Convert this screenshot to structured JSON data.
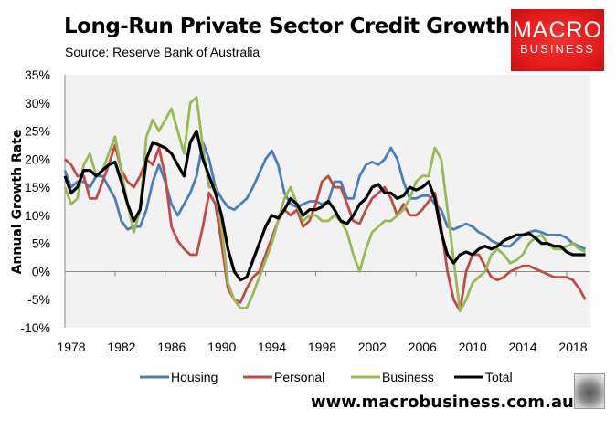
{
  "header": {
    "title": "Long-Run Private Sector Credit Growth",
    "subtitle": "Source: Reserve Bank of Australia"
  },
  "logo": {
    "line1": "MACRO",
    "line2": "BUSINESS",
    "color": "#e81c1c"
  },
  "footer": {
    "website": "www.macrobusiness.com.au"
  },
  "chart_data": {
    "type": "line",
    "title": "Long-Run Private Sector Credit Growth",
    "ylabel": "Annual Growth Rate",
    "xlabel": "",
    "xlim": [
      1978,
      2019.9
    ],
    "ylim": [
      -10,
      35
    ],
    "xticks": [
      1978,
      1982,
      1986,
      1990,
      1994,
      1998,
      2002,
      2006,
      2010,
      2014,
      2018
    ],
    "yticks": [
      "-10%",
      "-5%",
      "0%",
      "5%",
      "10%",
      "15%",
      "20%",
      "25%",
      "30%",
      "35%"
    ],
    "ytick_values": [
      -10,
      -5,
      0,
      5,
      10,
      15,
      20,
      25,
      30,
      35
    ],
    "grid": false,
    "legend": "bottom",
    "x": [
      1978,
      1978.5,
      1979,
      1979.5,
      1980,
      1980.5,
      1981,
      1981.5,
      1982,
      1982.5,
      1983,
      1983.5,
      1984,
      1984.5,
      1985,
      1985.5,
      1986,
      1986.5,
      1987,
      1987.5,
      1988,
      1988.5,
      1989,
      1989.5,
      1990,
      1990.5,
      1991,
      1991.5,
      1992,
      1992.5,
      1993,
      1993.5,
      1994,
      1994.5,
      1995,
      1995.5,
      1996,
      1996.5,
      1997,
      1997.5,
      1998,
      1998.5,
      1999,
      1999.5,
      2000,
      2000.5,
      2001,
      2001.5,
      2002,
      2002.5,
      2003,
      2003.5,
      2004,
      2004.5,
      2005,
      2005.5,
      2006,
      2006.5,
      2007,
      2007.5,
      2008,
      2008.5,
      2009,
      2009.5,
      2010,
      2010.5,
      2011,
      2011.5,
      2012,
      2012.5,
      2013,
      2013.5,
      2014,
      2014.5,
      2015,
      2015.5,
      2016,
      2016.5,
      2017,
      2017.5,
      2018,
      2018.5,
      2019,
      2019.5
    ],
    "series": [
      {
        "name": "Housing",
        "color": "#4a7ebb",
        "values": [
          18,
          15,
          16,
          16,
          15,
          17,
          17,
          15,
          13,
          9,
          7.5,
          8,
          8,
          11,
          16,
          19,
          16,
          12,
          10,
          12,
          14,
          17,
          23,
          20,
          15,
          13,
          11.5,
          11,
          12,
          13,
          15,
          17.5,
          20,
          21.5,
          19,
          14,
          12,
          11.5,
          12,
          12.5,
          12.5,
          12,
          12.5,
          16,
          16,
          13,
          13,
          17,
          19,
          19.5,
          19,
          20,
          22,
          20,
          16,
          13,
          13,
          13.5,
          13.5,
          12,
          11,
          8,
          7.5,
          8,
          8.5,
          8,
          7,
          6.5,
          5.5,
          5,
          4.5,
          4.5,
          5.5,
          6.5,
          7,
          7.3,
          7,
          6.5,
          6.5,
          6.5,
          6,
          5,
          4.5,
          4
        ]
      },
      {
        "name": "Personal",
        "color": "#be4b48",
        "values": [
          20,
          19,
          17,
          17,
          13,
          13,
          16,
          19,
          22.5,
          18,
          16,
          15,
          17,
          20,
          19,
          22,
          17,
          8,
          5.5,
          4,
          3,
          3,
          8,
          14,
          12,
          5,
          -3,
          -5,
          -5.5,
          -3,
          -1,
          0,
          3,
          6,
          9,
          11,
          10,
          11,
          8,
          9,
          12,
          16,
          17,
          15,
          15,
          12,
          9,
          8.5,
          11,
          13,
          14,
          15,
          13,
          10,
          12,
          10,
          10,
          11,
          12.5,
          14,
          8,
          0,
          -5,
          -7,
          0,
          3,
          3,
          1,
          -1,
          -1.5,
          -1,
          0,
          0.5,
          1,
          1,
          0.5,
          0,
          -0.5,
          -1,
          -1,
          -1,
          -1.5,
          -3,
          -5
        ]
      },
      {
        "name": "Business",
        "color": "#98b954",
        "values": [
          15,
          12,
          13,
          19,
          21,
          17,
          18,
          21,
          24,
          18,
          12,
          7,
          11,
          24,
          27,
          25,
          27,
          29,
          25,
          21,
          30,
          31,
          22,
          15,
          15,
          8,
          -2,
          -5,
          -6.5,
          -6.5,
          -4,
          -1,
          2,
          5,
          9,
          13,
          15,
          12,
          9,
          10,
          10,
          9,
          9,
          10,
          9,
          7,
          3,
          0,
          4,
          7,
          8,
          9,
          9,
          10,
          11,
          13,
          16,
          17,
          17,
          22,
          20,
          11,
          2,
          -7,
          -5,
          -2,
          -1,
          0,
          3,
          4,
          3,
          1.5,
          2,
          3,
          5,
          6,
          6.5,
          5,
          4,
          4,
          4.5,
          5,
          4,
          3.5
        ]
      },
      {
        "name": "Total",
        "color": "#000000",
        "values": [
          17,
          14,
          15,
          18,
          18,
          17,
          18,
          19,
          19.5,
          16,
          12,
          9,
          11,
          20,
          23,
          22.5,
          22,
          21,
          19,
          17,
          23,
          25,
          20,
          17,
          14,
          10,
          4,
          0,
          -1.5,
          -1,
          2,
          5,
          8,
          10,
          9.5,
          11,
          13,
          12,
          10,
          11,
          11,
          11.5,
          12.5,
          11,
          9,
          8.5,
          10,
          12,
          13,
          15,
          15.5,
          14,
          14,
          13,
          13.5,
          15,
          14.5,
          15,
          16,
          13,
          7,
          3,
          1.5,
          3,
          3.5,
          3,
          4,
          4.5,
          4,
          4.5,
          5.5,
          6,
          6.5,
          6.5,
          6.8,
          6,
          5,
          5,
          4.5,
          4.5,
          3.5,
          3,
          3,
          3
        ]
      }
    ]
  }
}
